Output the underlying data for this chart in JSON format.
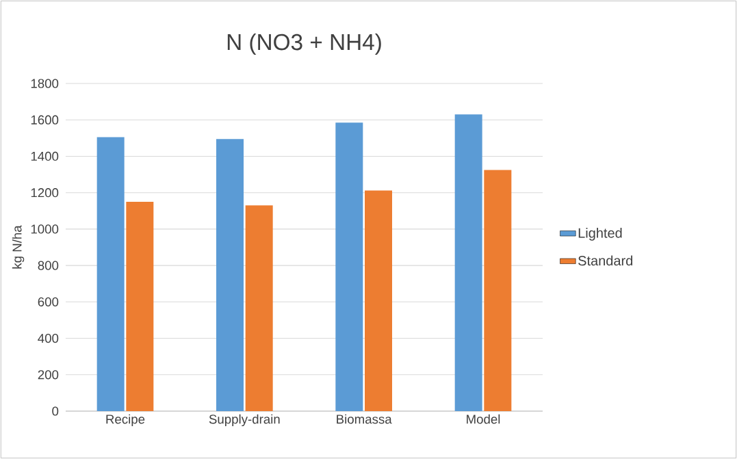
{
  "chart_data": {
    "type": "bar",
    "title": "N  (NO3 + NH4)",
    "ylabel": "kg N/ha",
    "categories": [
      "Recipe",
      "Supply-drain",
      "Biomassa",
      "Model"
    ],
    "series": [
      {
        "name": "Lighted",
        "color": "#5b9bd5",
        "values": [
          1505,
          1495,
          1585,
          1630
        ]
      },
      {
        "name": "Standard",
        "color": "#ed7d31",
        "values": [
          1150,
          1130,
          1212,
          1325
        ]
      }
    ],
    "ylim": [
      0,
      1800
    ],
    "yticks": [
      0,
      200,
      400,
      600,
      800,
      1000,
      1200,
      1400,
      1600,
      1800
    ],
    "grid": "y",
    "legend": "right"
  }
}
